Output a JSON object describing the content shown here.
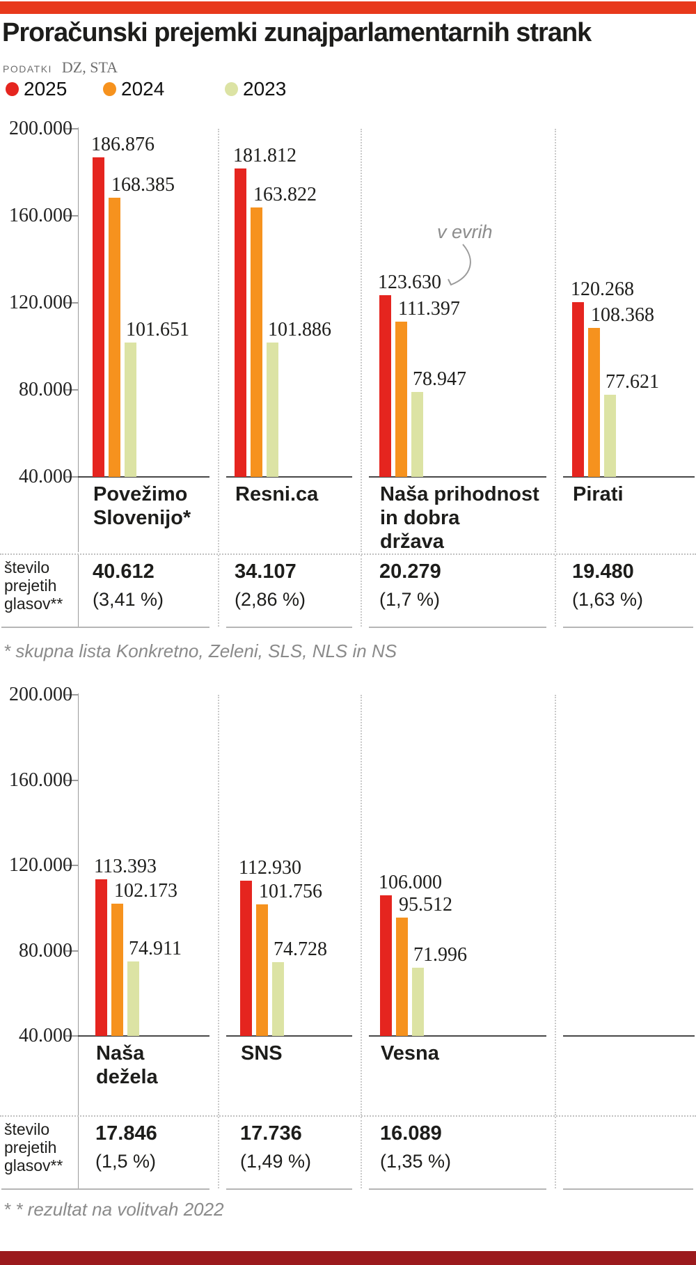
{
  "page": {
    "title": "Proračunski prejemki zunajparlamentarnih strank",
    "source_label": "PODATKI",
    "source_value": "DZ, STA",
    "unit_note": "v evrih",
    "votes_row_label_lines": [
      "število",
      "prejetih",
      "glasov**"
    ],
    "footnotes": [
      "* skupna lista Konkretno, Zeleni, SLS, NLS in NS",
      "* * rezultat na volitvah 2022"
    ],
    "colors": {
      "bar_2025": "#e5251f",
      "bar_2024": "#f6921e",
      "bar_2023": "#dce3a4",
      "top_bar": "#e8391b",
      "bottom_bar": "#9b1a1d"
    }
  },
  "legend": [
    {
      "label": "2025",
      "color": "#e5251f"
    },
    {
      "label": "2024",
      "color": "#f6921e"
    },
    {
      "label": "2023",
      "color": "#dce3a4"
    }
  ],
  "chart_data": [
    {
      "type": "bar",
      "unit": "v evrih (EUR)",
      "series_years": [
        "2025",
        "2024",
        "2023"
      ],
      "y_ticks": [
        "200.000",
        "160.000",
        "120.000",
        "80.000",
        "40.000"
      ],
      "ylim": [
        40000,
        200000
      ],
      "groups": [
        {
          "name_lines": [
            "Povežimo",
            "Slovenijo*"
          ],
          "values": [
            186876,
            168385,
            101651
          ],
          "value_labels": [
            "186.876",
            "168.385",
            "101.651"
          ],
          "votes": "40.612",
          "votes_pct": "(3,41 %)"
        },
        {
          "name_lines": [
            "Resni.ca"
          ],
          "values": [
            181812,
            163822,
            101886
          ],
          "value_labels": [
            "181.812",
            "163.822",
            "101.886"
          ],
          "votes": "34.107",
          "votes_pct": "(2,86 %)"
        },
        {
          "name_lines": [
            "Naša prihodnost",
            "in dobra",
            "država"
          ],
          "values": [
            123630,
            111397,
            78947
          ],
          "value_labels": [
            "123.630",
            "111.397",
            "78.947"
          ],
          "votes": "20.279",
          "votes_pct": "(1,7 %)"
        },
        {
          "name_lines": [
            "Pirati"
          ],
          "values": [
            120268,
            108368,
            77621
          ],
          "value_labels": [
            "120.268",
            "108.368",
            "77.621"
          ],
          "votes": "19.480",
          "votes_pct": "(1,63 %)"
        }
      ]
    },
    {
      "type": "bar",
      "unit": "v evrih (EUR)",
      "series_years": [
        "2025",
        "2024",
        "2023"
      ],
      "y_ticks": [
        "200.000",
        "160.000",
        "120.000",
        "80.000",
        "40.000"
      ],
      "ylim": [
        40000,
        200000
      ],
      "groups": [
        {
          "name_lines": [
            "Naša",
            "dežela"
          ],
          "values": [
            113393,
            102173,
            74911
          ],
          "value_labels": [
            "113.393",
            "102.173",
            "74.911"
          ],
          "votes": "17.846",
          "votes_pct": "(1,5 %)"
        },
        {
          "name_lines": [
            "SNS"
          ],
          "values": [
            112930,
            101756,
            74728
          ],
          "value_labels": [
            "112.930",
            "101.756",
            "74.728"
          ],
          "votes": "17.736",
          "votes_pct": "(1,49 %)"
        },
        {
          "name_lines": [
            "Vesna"
          ],
          "values": [
            106000,
            95512,
            71996
          ],
          "value_labels": [
            "106.000",
            "95.512",
            "71.996"
          ],
          "votes": "16.089",
          "votes_pct": "(1,35 %)"
        }
      ]
    }
  ]
}
